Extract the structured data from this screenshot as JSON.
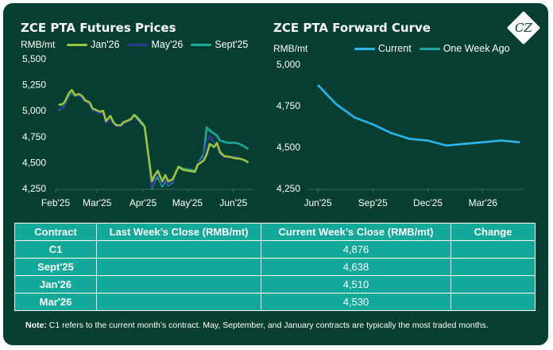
{
  "left_chart": {
    "title": "ZCE PTA Futures Prices",
    "unit": "RMB/mt",
    "legend": [
      "Jan'26",
      "May'26",
      "Sept'25"
    ]
  },
  "right_chart": {
    "title": "ZCE PTA Forward Curve",
    "unit": "RMB/mt",
    "legend": [
      "Current",
      "One Week Ago"
    ]
  },
  "colors": {
    "background": "#063f32",
    "jan26": "#9cc43b",
    "may26": "#2b3a8c",
    "sept25": "#1aa89a",
    "current": "#29b6ef",
    "one_week_ago": "#1aa89a",
    "table_fill": "#13a99a"
  },
  "logo": {
    "text": "CZ"
  },
  "chart_data": [
    {
      "type": "line",
      "title": "ZCE PTA Futures Prices",
      "ylabel": "RMB/mt",
      "ylim": [
        4250,
        5500
      ],
      "yticks": [
        "4,250",
        "4,500",
        "4,750",
        "5,000",
        "5,250",
        "5,500"
      ],
      "xticks": [
        "Feb'25",
        "Mar'25",
        "Apr'25",
        "May'25",
        "Jun'25"
      ],
      "x": [
        "2025-02-03",
        "2025-02-05",
        "2025-02-07",
        "2025-02-10",
        "2025-02-12",
        "2025-02-14",
        "2025-02-17",
        "2025-02-19",
        "2025-02-21",
        "2025-02-24",
        "2025-02-26",
        "2025-02-28",
        "2025-03-03",
        "2025-03-05",
        "2025-03-07",
        "2025-03-10",
        "2025-03-12",
        "2025-03-14",
        "2025-03-17",
        "2025-03-19",
        "2025-03-21",
        "2025-03-24",
        "2025-03-26",
        "2025-03-28",
        "2025-03-31",
        "2025-04-02",
        "2025-04-03",
        "2025-04-07",
        "2025-04-09",
        "2025-04-11",
        "2025-04-14",
        "2025-04-16",
        "2025-04-18",
        "2025-04-21",
        "2025-04-23",
        "2025-04-25",
        "2025-04-28",
        "2025-05-06",
        "2025-05-08",
        "2025-05-12",
        "2025-05-14",
        "2025-05-16",
        "2025-05-19",
        "2025-05-21",
        "2025-05-23",
        "2025-05-26",
        "2025-05-28",
        "2025-06-03",
        "2025-06-05",
        "2025-06-09",
        "2025-06-11"
      ],
      "series": [
        {
          "name": "Jan'26",
          "values": [
            5060,
            5060,
            5080,
            5170,
            5200,
            5150,
            5160,
            5140,
            5100,
            5080,
            5020,
            5010,
            4990,
            5000,
            4900,
            4950,
            4890,
            4860,
            4860,
            4890,
            4900,
            4920,
            4960,
            4930,
            4880,
            4850,
            4750,
            4320,
            4380,
            4420,
            4320,
            4380,
            4320,
            4340,
            4400,
            4460,
            4430,
            4410,
            4480,
            4520,
            4580,
            4680,
            4650,
            4690,
            4600,
            4560,
            4560,
            4540,
            4540,
            4520,
            4500
          ]
        },
        {
          "name": "May'26",
          "values": [
            5020,
            5020,
            5040,
            5160,
            5190,
            5140,
            5150,
            5120,
            5090,
            5060,
            5000,
            4990,
            4970,
            4980,
            4880,
            4930,
            4870,
            4850,
            4850,
            4880,
            4890,
            4910,
            4950,
            4920,
            4870,
            4840,
            4740,
            4260,
            4350,
            4390,
            4290,
            4350,
            4290,
            4320,
            4400,
            4460,
            4430,
            4410,
            4490,
            4550,
            4700,
            4760,
            4690,
            4650,
            4580,
            4560,
            4550,
            4560,
            4540,
            4520,
            4510
          ]
        },
        {
          "name": "Sept'25",
          "values": [
            5010,
            5020,
            5050,
            5150,
            5180,
            5140,
            5150,
            5120,
            5090,
            5070,
            5020,
            5000,
            4980,
            4990,
            4890,
            4940,
            4880,
            4860,
            4860,
            4890,
            4900,
            4920,
            4960,
            4940,
            4890,
            4850,
            4760,
            4250,
            4330,
            4360,
            4270,
            4330,
            4280,
            4310,
            4400,
            4460,
            4440,
            4420,
            4490,
            4580,
            4840,
            4810,
            4780,
            4760,
            4710,
            4700,
            4690,
            4690,
            4680,
            4650,
            4630
          ]
        }
      ]
    },
    {
      "type": "line",
      "title": "ZCE PTA Forward Curve",
      "ylabel": "RMB/mt",
      "ylim": [
        4250,
        5000
      ],
      "yticks": [
        "4,250",
        "4,500",
        "4,750",
        "5,000"
      ],
      "xticks": [
        "Jun'25",
        "Sep'25",
        "Dec'25",
        "Mar'26"
      ],
      "x": [
        "Jun'25",
        "Jul'25",
        "Aug'25",
        "Sep'25",
        "Oct'25",
        "Nov'25",
        "Dec'25",
        "Jan'26",
        "Feb'26",
        "Mar'26",
        "Apr'26",
        "May'26"
      ],
      "series": [
        {
          "name": "Current",
          "values": [
            4876,
            4760,
            4680,
            4638,
            4585,
            4550,
            4540,
            4510,
            4520,
            4530,
            4540,
            4530
          ]
        }
      ]
    }
  ],
  "table": {
    "headers": [
      "Contract",
      "Last Week’s Close (RMB/mt)",
      "Current Week’s Close (RMB/mt)",
      "Change"
    ],
    "rows": [
      [
        "C1",
        "",
        "4,876",
        ""
      ],
      [
        "Sept'25",
        "",
        "4,638",
        ""
      ],
      [
        "Jan'26",
        "",
        "4,510",
        ""
      ],
      [
        "Mar'26",
        "",
        "4,530",
        ""
      ]
    ]
  },
  "note": {
    "label": "Note:",
    "text": "C1 refers to the current month’s contract. May, September, and January contracts are typically the most traded months."
  }
}
